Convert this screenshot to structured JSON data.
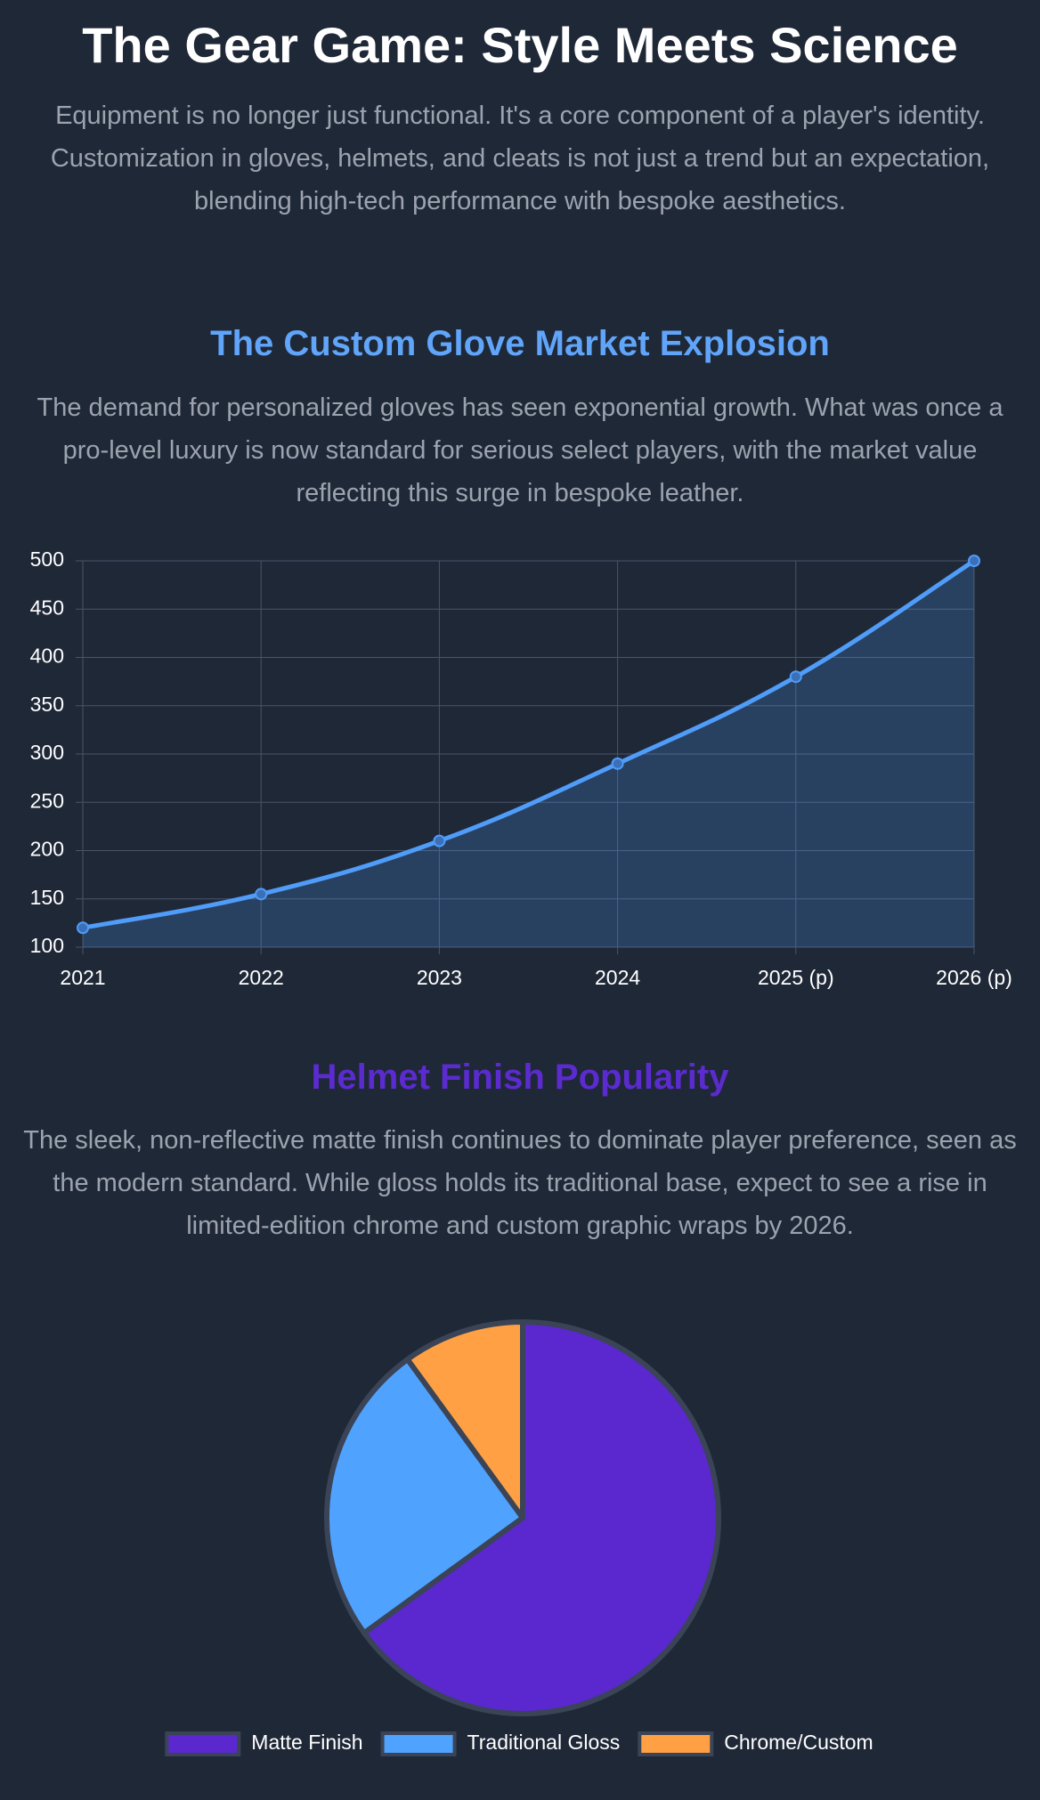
{
  "header": {
    "title": "The Gear Game: Style Meets Science",
    "intro": "Equipment is no longer just functional. It's a core component of a player's identity. Customization in gloves, helmets, and cleats is not just a trend but an expectation, blending high-tech performance with bespoke aesthetics."
  },
  "chart_data": [
    {
      "type": "line",
      "title": "The Custom Glove Market Explosion",
      "subtitle": "The demand for personalized gloves has seen exponential growth. What was once a pro-level luxury is now standard for serious select players, with the market value reflecting this surge in bespoke leather.",
      "categories": [
        "2021",
        "2022",
        "2023",
        "2024",
        "2025 (p)",
        "2026 (p)"
      ],
      "values": [
        120,
        155,
        210,
        290,
        380,
        500
      ],
      "color": "#4f9cf9",
      "area": true,
      "ylim": [
        100,
        500
      ],
      "yticks": [
        100,
        150,
        200,
        250,
        300,
        350,
        400,
        450,
        500
      ],
      "grid": true
    },
    {
      "type": "pie",
      "title": "Helmet Finish Popularity",
      "subtitle": "The sleek, non-reflective matte finish continues to dominate player preference, seen as the modern standard. While gloss holds its traditional base, expect to see a rise in limited-edition chrome and custom graphic wraps by 2026.",
      "categories": [
        "Matte Finish",
        "Traditional Gloss",
        "Chrome/Custom"
      ],
      "values": [
        65,
        25,
        10
      ],
      "colors": [
        "#5b27cf",
        "#50a2ff",
        "#ffa044"
      ],
      "legend": "bottom"
    }
  ]
}
